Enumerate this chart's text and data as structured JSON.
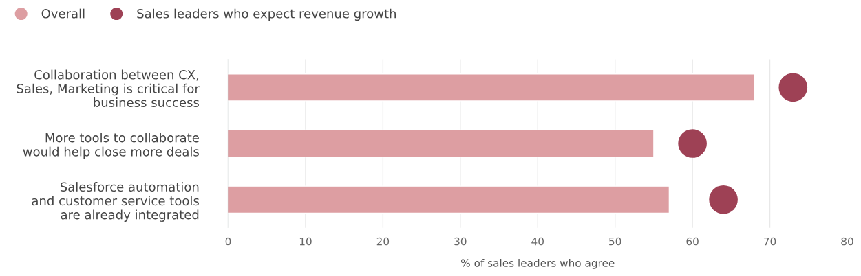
{
  "chart_data": {
    "type": "bar",
    "orientation": "horizontal",
    "categories": [
      "Collaboration between CX,\nSales, Marketing is critical for\nbusiness success",
      "More tools to collaborate\nwould help close more deals",
      "Salesforce automation\nand customer service tools\nare already integrated"
    ],
    "series": [
      {
        "name": "Overall",
        "color": "#dd9ea2",
        "values": [
          68,
          55,
          57
        ]
      },
      {
        "name": "Sales leaders who expect revenue growth",
        "type": "scatter",
        "color": "#9e4155",
        "values": [
          73,
          60,
          64
        ]
      }
    ],
    "xlabel": "% of sales leaders who agree",
    "xlim": [
      0,
      80
    ],
    "xticks": [
      0,
      10,
      20,
      30,
      40,
      50,
      60,
      70,
      80
    ],
    "grid": "x",
    "legend": "top left",
    "marker": "circle"
  }
}
